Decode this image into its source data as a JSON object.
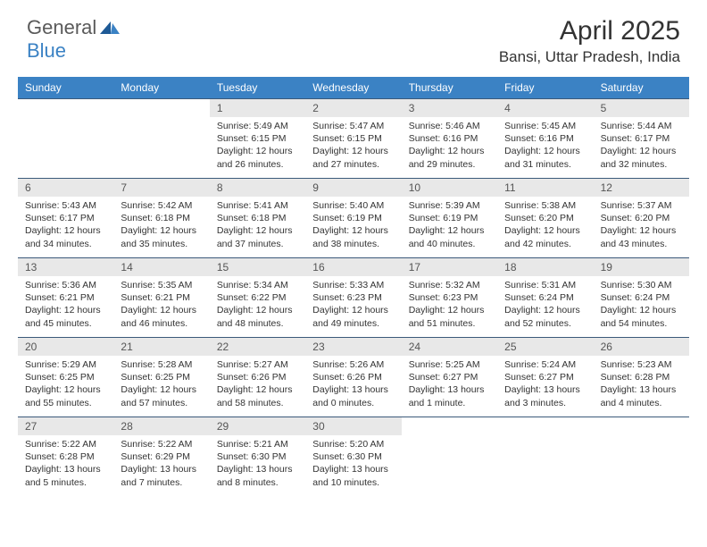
{
  "logo": {
    "general": "General",
    "blue": "Blue"
  },
  "title": "April 2025",
  "location": "Bansi, Uttar Pradesh, India",
  "weekdays": [
    "Sunday",
    "Monday",
    "Tuesday",
    "Wednesday",
    "Thursday",
    "Friday",
    "Saturday"
  ],
  "colors": {
    "header_bg": "#3b82c4",
    "header_text": "#ffffff",
    "daynum_bg": "#e8e8e8",
    "daynum_text": "#555555",
    "border": "#3b5a7a",
    "body_text": "#333333"
  },
  "weeks": [
    [
      null,
      null,
      {
        "n": "1",
        "sunrise": "Sunrise: 5:49 AM",
        "sunset": "Sunset: 6:15 PM",
        "day1": "Daylight: 12 hours",
        "day2": "and 26 minutes."
      },
      {
        "n": "2",
        "sunrise": "Sunrise: 5:47 AM",
        "sunset": "Sunset: 6:15 PM",
        "day1": "Daylight: 12 hours",
        "day2": "and 27 minutes."
      },
      {
        "n": "3",
        "sunrise": "Sunrise: 5:46 AM",
        "sunset": "Sunset: 6:16 PM",
        "day1": "Daylight: 12 hours",
        "day2": "and 29 minutes."
      },
      {
        "n": "4",
        "sunrise": "Sunrise: 5:45 AM",
        "sunset": "Sunset: 6:16 PM",
        "day1": "Daylight: 12 hours",
        "day2": "and 31 minutes."
      },
      {
        "n": "5",
        "sunrise": "Sunrise: 5:44 AM",
        "sunset": "Sunset: 6:17 PM",
        "day1": "Daylight: 12 hours",
        "day2": "and 32 minutes."
      }
    ],
    [
      {
        "n": "6",
        "sunrise": "Sunrise: 5:43 AM",
        "sunset": "Sunset: 6:17 PM",
        "day1": "Daylight: 12 hours",
        "day2": "and 34 minutes."
      },
      {
        "n": "7",
        "sunrise": "Sunrise: 5:42 AM",
        "sunset": "Sunset: 6:18 PM",
        "day1": "Daylight: 12 hours",
        "day2": "and 35 minutes."
      },
      {
        "n": "8",
        "sunrise": "Sunrise: 5:41 AM",
        "sunset": "Sunset: 6:18 PM",
        "day1": "Daylight: 12 hours",
        "day2": "and 37 minutes."
      },
      {
        "n": "9",
        "sunrise": "Sunrise: 5:40 AM",
        "sunset": "Sunset: 6:19 PM",
        "day1": "Daylight: 12 hours",
        "day2": "and 38 minutes."
      },
      {
        "n": "10",
        "sunrise": "Sunrise: 5:39 AM",
        "sunset": "Sunset: 6:19 PM",
        "day1": "Daylight: 12 hours",
        "day2": "and 40 minutes."
      },
      {
        "n": "11",
        "sunrise": "Sunrise: 5:38 AM",
        "sunset": "Sunset: 6:20 PM",
        "day1": "Daylight: 12 hours",
        "day2": "and 42 minutes."
      },
      {
        "n": "12",
        "sunrise": "Sunrise: 5:37 AM",
        "sunset": "Sunset: 6:20 PM",
        "day1": "Daylight: 12 hours",
        "day2": "and 43 minutes."
      }
    ],
    [
      {
        "n": "13",
        "sunrise": "Sunrise: 5:36 AM",
        "sunset": "Sunset: 6:21 PM",
        "day1": "Daylight: 12 hours",
        "day2": "and 45 minutes."
      },
      {
        "n": "14",
        "sunrise": "Sunrise: 5:35 AM",
        "sunset": "Sunset: 6:21 PM",
        "day1": "Daylight: 12 hours",
        "day2": "and 46 minutes."
      },
      {
        "n": "15",
        "sunrise": "Sunrise: 5:34 AM",
        "sunset": "Sunset: 6:22 PM",
        "day1": "Daylight: 12 hours",
        "day2": "and 48 minutes."
      },
      {
        "n": "16",
        "sunrise": "Sunrise: 5:33 AM",
        "sunset": "Sunset: 6:23 PM",
        "day1": "Daylight: 12 hours",
        "day2": "and 49 minutes."
      },
      {
        "n": "17",
        "sunrise": "Sunrise: 5:32 AM",
        "sunset": "Sunset: 6:23 PM",
        "day1": "Daylight: 12 hours",
        "day2": "and 51 minutes."
      },
      {
        "n": "18",
        "sunrise": "Sunrise: 5:31 AM",
        "sunset": "Sunset: 6:24 PM",
        "day1": "Daylight: 12 hours",
        "day2": "and 52 minutes."
      },
      {
        "n": "19",
        "sunrise": "Sunrise: 5:30 AM",
        "sunset": "Sunset: 6:24 PM",
        "day1": "Daylight: 12 hours",
        "day2": "and 54 minutes."
      }
    ],
    [
      {
        "n": "20",
        "sunrise": "Sunrise: 5:29 AM",
        "sunset": "Sunset: 6:25 PM",
        "day1": "Daylight: 12 hours",
        "day2": "and 55 minutes."
      },
      {
        "n": "21",
        "sunrise": "Sunrise: 5:28 AM",
        "sunset": "Sunset: 6:25 PM",
        "day1": "Daylight: 12 hours",
        "day2": "and 57 minutes."
      },
      {
        "n": "22",
        "sunrise": "Sunrise: 5:27 AM",
        "sunset": "Sunset: 6:26 PM",
        "day1": "Daylight: 12 hours",
        "day2": "and 58 minutes."
      },
      {
        "n": "23",
        "sunrise": "Sunrise: 5:26 AM",
        "sunset": "Sunset: 6:26 PM",
        "day1": "Daylight: 13 hours",
        "day2": "and 0 minutes."
      },
      {
        "n": "24",
        "sunrise": "Sunrise: 5:25 AM",
        "sunset": "Sunset: 6:27 PM",
        "day1": "Daylight: 13 hours",
        "day2": "and 1 minute."
      },
      {
        "n": "25",
        "sunrise": "Sunrise: 5:24 AM",
        "sunset": "Sunset: 6:27 PM",
        "day1": "Daylight: 13 hours",
        "day2": "and 3 minutes."
      },
      {
        "n": "26",
        "sunrise": "Sunrise: 5:23 AM",
        "sunset": "Sunset: 6:28 PM",
        "day1": "Daylight: 13 hours",
        "day2": "and 4 minutes."
      }
    ],
    [
      {
        "n": "27",
        "sunrise": "Sunrise: 5:22 AM",
        "sunset": "Sunset: 6:28 PM",
        "day1": "Daylight: 13 hours",
        "day2": "and 5 minutes."
      },
      {
        "n": "28",
        "sunrise": "Sunrise: 5:22 AM",
        "sunset": "Sunset: 6:29 PM",
        "day1": "Daylight: 13 hours",
        "day2": "and 7 minutes."
      },
      {
        "n": "29",
        "sunrise": "Sunrise: 5:21 AM",
        "sunset": "Sunset: 6:30 PM",
        "day1": "Daylight: 13 hours",
        "day2": "and 8 minutes."
      },
      {
        "n": "30",
        "sunrise": "Sunrise: 5:20 AM",
        "sunset": "Sunset: 6:30 PM",
        "day1": "Daylight: 13 hours",
        "day2": "and 10 minutes."
      },
      null,
      null,
      null
    ]
  ]
}
